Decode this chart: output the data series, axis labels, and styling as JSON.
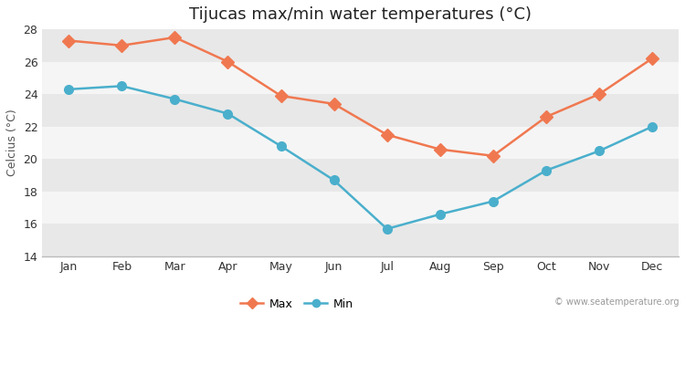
{
  "title": "Tijucas max/min water temperatures (°C)",
  "xlabel": "",
  "ylabel": "Celcius (°C)",
  "months": [
    "Jan",
    "Feb",
    "Mar",
    "Apr",
    "May",
    "Jun",
    "Jul",
    "Aug",
    "Sep",
    "Oct",
    "Nov",
    "Dec"
  ],
  "max_values": [
    27.3,
    27.0,
    27.5,
    26.0,
    23.9,
    23.4,
    21.5,
    20.6,
    20.2,
    22.6,
    24.0,
    26.2
  ],
  "min_values": [
    24.3,
    24.5,
    23.7,
    22.8,
    20.8,
    18.7,
    15.7,
    16.6,
    17.4,
    19.3,
    20.5,
    22.0
  ],
  "max_color": "#f07850",
  "min_color": "#4aafcc",
  "max_label": "Max",
  "min_label": "Min",
  "ylim": [
    14,
    28
  ],
  "yticks": [
    14,
    16,
    18,
    20,
    22,
    24,
    26,
    28
  ],
  "fig_bg_color": "#ffffff",
  "band_colors": [
    "#e8e8e8",
    "#f5f5f5"
  ],
  "watermark": "© www.seatemperature.org",
  "title_fontsize": 13,
  "axis_label_fontsize": 9,
  "tick_fontsize": 9,
  "legend_fontsize": 9,
  "marker_size_max": 7,
  "marker_size_min": 7,
  "line_width": 1.8
}
